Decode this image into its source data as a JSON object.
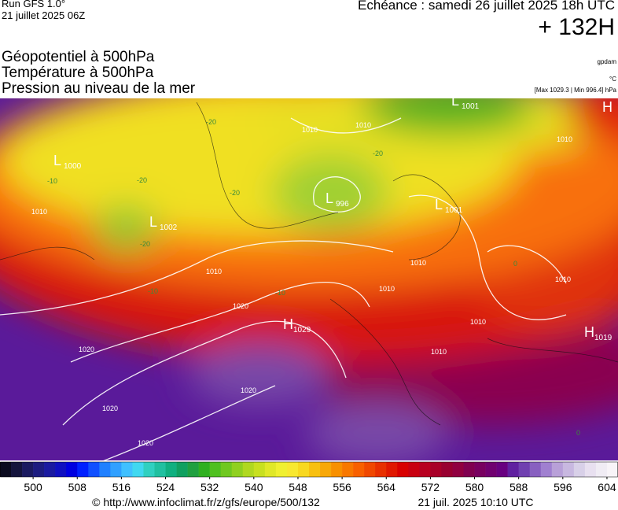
{
  "header": {
    "run": "Run GFS 1.0°",
    "run_date": "21 juillet 2025 06Z",
    "forecast": "Echéance : samedi 26 juillet 2025 18h UTC",
    "lead": "+ 132H"
  },
  "legend": {
    "fields": [
      "Géopotentiel à 500hPa",
      "Température à 500hPa",
      "Pression au niveau de la mer"
    ],
    "units": [
      "gpdam",
      "°C"
    ],
    "pressure_range": "[Max 1029.3 | Min 996.4] hPa"
  },
  "map": {
    "centers": [
      {
        "symbol": "L",
        "value": 1001
      },
      {
        "symbol": "H"
      },
      {
        "symbol": "L",
        "value": 1000
      },
      {
        "symbol": "L",
        "value": 996
      },
      {
        "symbol": "L",
        "value": 1001
      },
      {
        "symbol": "L",
        "value": 1002
      },
      {
        "symbol": "H",
        "value": 1029
      },
      {
        "symbol": "H",
        "value": 1019
      }
    ],
    "isobar_labels": [
      1010,
      1010,
      1010,
      1010,
      1010,
      1010,
      1010,
      1010,
      1010,
      1010,
      1020,
      1020,
      1020,
      1020,
      1020
    ],
    "temperature_labels": [
      -20,
      -20,
      -20,
      -20,
      -20,
      -10,
      -10,
      -10,
      0,
      0
    ]
  },
  "colorbar": {
    "lim": [
      494,
      606
    ],
    "ticks": [
      500,
      508,
      516,
      524,
      532,
      540,
      548,
      556,
      564,
      572,
      580,
      588,
      596,
      604
    ],
    "colors": [
      "#0a0a1e",
      "#14143c",
      "#1a1a60",
      "#1c1c80",
      "#1a1aa0",
      "#1010c0",
      "#0000e0",
      "#0020ff",
      "#1050ff",
      "#2080ff",
      "#30a0ff",
      "#40c0ff",
      "#40d8f0",
      "#30d0c0",
      "#20c0a0",
      "#10b080",
      "#10a060",
      "#20a040",
      "#30b020",
      "#50c020",
      "#70c820",
      "#90d020",
      "#b0d820",
      "#c8e020",
      "#e0e828",
      "#f0f030",
      "#f8e830",
      "#f8d820",
      "#f8c010",
      "#f8a808",
      "#f89000",
      "#f87800",
      "#f86000",
      "#f04800",
      "#e83000",
      "#e01800",
      "#d80000",
      "#c80010",
      "#b80020",
      "#a80028",
      "#980030",
      "#900040",
      "#800050",
      "#780060",
      "#700070",
      "#680080",
      "#6020a0",
      "#7040b0",
      "#8860c0",
      "#a080d0",
      "#b8a0d8",
      "#c8b8e0",
      "#d8d0e8",
      "#e8e0f0",
      "#f0ecf4",
      "#f8f4f8"
    ]
  },
  "footer": {
    "url": "© http://www.infoclimat.fr/z/gfs/europe/500/132",
    "timestamp": "21 juil. 2025 10:10 UTC"
  }
}
